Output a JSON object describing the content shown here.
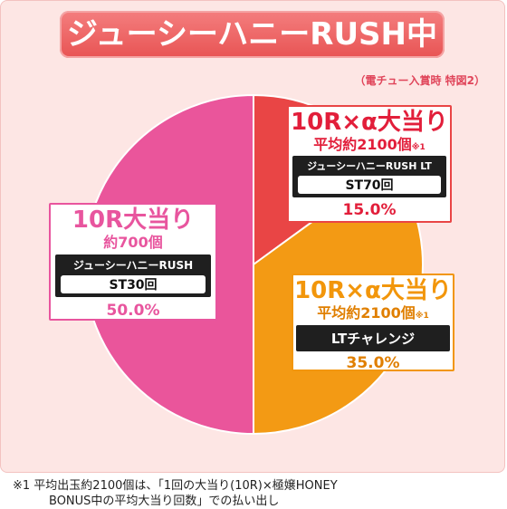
{
  "header": {
    "title": "ジューシーハニーRUSH中",
    "condition": "（電チュー入賞時 特図2）"
  },
  "chart_data": {
    "type": "pie",
    "title": "ジューシーハニーRUSH中",
    "slices": [
      {
        "label": "10R×α大当り",
        "sub": "平均約2100個",
        "mark": "※1",
        "mode": "ジューシーハニーRUSH LT",
        "st": "ST70回",
        "value": 15.0,
        "percent": "15.0%",
        "color": "#e94545"
      },
      {
        "label": "10R×α大当り",
        "sub": "平均約2100個",
        "mark": "※1",
        "mode": "LTチャレンジ",
        "value": 35.0,
        "percent": "35.0%",
        "color": "#f39a14"
      },
      {
        "label": "10R大当り",
        "sub": "約700個",
        "mode": "ジューシーハニーRUSH",
        "st": "ST30回",
        "value": 50.0,
        "percent": "50.0%",
        "color": "#ea559b"
      }
    ]
  },
  "footnote": {
    "line1": "※1  平均出玉約2100個は、「1回の大当り(10R)×極嬢HONEY",
    "line2": "BONUS中の平均大当り回数」での払い出し"
  }
}
